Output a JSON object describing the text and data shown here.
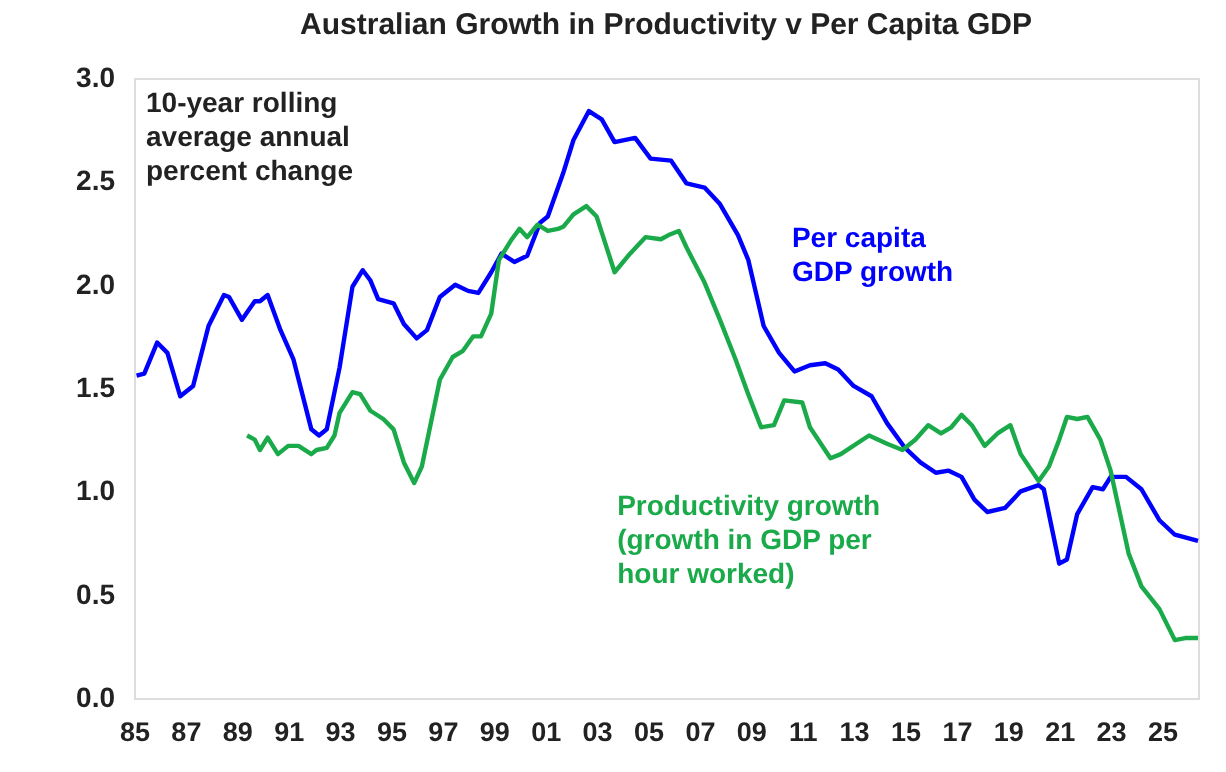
{
  "chart_data": {
    "type": "line",
    "title": "Australian Growth in Productivity v Per Capita GDP",
    "annotations": [
      "10-year rolling average annual percent change"
    ],
    "xlim": [
      1985,
      2026.4
    ],
    "xticks": [
      {
        "value": 1985,
        "label": "85"
      },
      {
        "value": 1987,
        "label": "87"
      },
      {
        "value": 1989,
        "label": "89"
      },
      {
        "value": 1991,
        "label": "91"
      },
      {
        "value": 1993,
        "label": "93"
      },
      {
        "value": 1995,
        "label": "95"
      },
      {
        "value": 1997,
        "label": "97"
      },
      {
        "value": 1999,
        "label": "99"
      },
      {
        "value": 2001,
        "label": "01"
      },
      {
        "value": 2003,
        "label": "03"
      },
      {
        "value": 2005,
        "label": "05"
      },
      {
        "value": 2007,
        "label": "07"
      },
      {
        "value": 2009,
        "label": "09"
      },
      {
        "value": 2011,
        "label": "11"
      },
      {
        "value": 2013,
        "label": "13"
      },
      {
        "value": 2015,
        "label": "15"
      },
      {
        "value": 2017,
        "label": "17"
      },
      {
        "value": 2019,
        "label": "19"
      },
      {
        "value": 2021,
        "label": "21"
      },
      {
        "value": 2023,
        "label": "23"
      },
      {
        "value": 2025,
        "label": "25"
      }
    ],
    "ylim": [
      0,
      3
    ],
    "yticks": [
      {
        "value": 0,
        "label": "0.0"
      },
      {
        "value": 0.5,
        "label": "0.5"
      },
      {
        "value": 1,
        "label": "1.0"
      },
      {
        "value": 1.5,
        "label": "1.5"
      },
      {
        "value": 2,
        "label": "2.0"
      },
      {
        "value": 2.5,
        "label": "2.5"
      },
      {
        "value": 3,
        "label": "3.0"
      }
    ],
    "grid": false,
    "legend": false,
    "marker": "none",
    "line_style": "solid",
    "series": [
      {
        "name": "Per capita GDP growth",
        "color": "#0000ff",
        "x": [
          1985.1,
          1985.4,
          1985.9,
          1986.3,
          1986.8,
          1987.3,
          1987.9,
          1988.5,
          1988.7,
          1989.2,
          1989.7,
          1989.9,
          1990.2,
          1990.7,
          1991.2,
          1991.9,
          1992.2,
          1992.5,
          1993.0,
          1993.5,
          1993.9,
          1994.2,
          1994.5,
          1995.1,
          1995.5,
          1996.0,
          1996.4,
          1996.9,
          1997.5,
          1998.0,
          1998.4,
          1998.9,
          1999.3,
          1999.8,
          2000.3,
          2000.8,
          2001.1,
          2001.7,
          2002.1,
          2002.7,
          2003.2,
          2003.7,
          2004.5,
          2005.1,
          2005.9,
          2006.5,
          2007.2,
          2007.8,
          2008.5,
          2008.9,
          2009.5,
          2010.1,
          2010.7,
          2011.3,
          2011.9,
          2012.4,
          2013.0,
          2013.7,
          2014.3,
          2015.0,
          2015.6,
          2016.2,
          2016.7,
          2017.2,
          2017.7,
          2018.2,
          2018.9,
          2019.5,
          2020.2,
          2020.4,
          2020.7,
          2021.0,
          2021.3,
          2021.7,
          2022.3,
          2022.7,
          2023.0,
          2023.6,
          2024.2,
          2024.9,
          2025.5,
          2026.4
        ],
        "values": [
          1.56,
          1.57,
          1.72,
          1.67,
          1.46,
          1.51,
          1.8,
          1.95,
          1.94,
          1.83,
          1.92,
          1.92,
          1.95,
          1.78,
          1.64,
          1.3,
          1.27,
          1.3,
          1.6,
          1.99,
          2.07,
          2.02,
          1.93,
          1.91,
          1.81,
          1.74,
          1.78,
          1.94,
          2.0,
          1.97,
          1.96,
          2.06,
          2.15,
          2.11,
          2.14,
          2.3,
          2.33,
          2.54,
          2.7,
          2.84,
          2.8,
          2.69,
          2.71,
          2.61,
          2.6,
          2.49,
          2.47,
          2.39,
          2.24,
          2.12,
          1.8,
          1.67,
          1.58,
          1.61,
          1.62,
          1.59,
          1.51,
          1.46,
          1.33,
          1.21,
          1.14,
          1.09,
          1.1,
          1.07,
          0.96,
          0.9,
          0.92,
          1.0,
          1.03,
          1.01,
          0.83,
          0.65,
          0.67,
          0.89,
          1.02,
          1.01,
          1.07,
          1.07,
          1.01,
          0.86,
          0.79,
          0.76
        ]
      },
      {
        "name": "Productivity growth (growth in GDP per hour worked)",
        "color": "#1aaa4a",
        "x": [
          1989.4,
          1989.7,
          1989.9,
          1990.2,
          1990.6,
          1991.0,
          1991.4,
          1991.9,
          1992.1,
          1992.5,
          1992.8,
          1993.0,
          1993.5,
          1993.8,
          1994.2,
          1994.7,
          1995.1,
          1995.5,
          1995.9,
          1996.2,
          1996.9,
          1997.4,
          1997.8,
          1998.2,
          1998.5,
          1998.9,
          1999.2,
          1999.7,
          2000.0,
          2000.3,
          2000.7,
          2001.1,
          2001.5,
          2001.7,
          2002.1,
          2002.6,
          2003.0,
          2003.7,
          2004.3,
          2004.9,
          2005.5,
          2005.8,
          2006.2,
          2006.5,
          2007.2,
          2007.8,
          2008.4,
          2008.9,
          2009.4,
          2009.9,
          2010.3,
          2011.0,
          2011.3,
          2012.1,
          2012.5,
          2013.6,
          2014.3,
          2014.9,
          2015.4,
          2015.9,
          2016.4,
          2016.8,
          2017.2,
          2017.6,
          2018.1,
          2018.6,
          2019.1,
          2019.5,
          2020.2,
          2020.6,
          2021.0,
          2021.3,
          2021.7,
          2022.1,
          2022.6,
          2023.0,
          2023.7,
          2024.2,
          2024.9,
          2025.5,
          2025.9,
          2026.4
        ],
        "values": [
          1.27,
          1.25,
          1.2,
          1.26,
          1.18,
          1.22,
          1.22,
          1.18,
          1.2,
          1.21,
          1.27,
          1.38,
          1.48,
          1.47,
          1.39,
          1.35,
          1.3,
          1.14,
          1.04,
          1.12,
          1.54,
          1.65,
          1.68,
          1.75,
          1.75,
          1.86,
          2.12,
          2.22,
          2.27,
          2.23,
          2.29,
          2.26,
          2.27,
          2.28,
          2.34,
          2.38,
          2.33,
          2.06,
          2.15,
          2.23,
          2.22,
          2.24,
          2.26,
          2.18,
          2.01,
          1.83,
          1.64,
          1.47,
          1.31,
          1.32,
          1.44,
          1.43,
          1.31,
          1.16,
          1.18,
          1.27,
          1.23,
          1.2,
          1.25,
          1.32,
          1.28,
          1.31,
          1.37,
          1.32,
          1.22,
          1.28,
          1.32,
          1.18,
          1.05,
          1.12,
          1.25,
          1.36,
          1.35,
          1.36,
          1.25,
          1.1,
          0.7,
          0.54,
          0.43,
          0.28,
          0.29,
          0.29
        ]
      }
    ]
  }
}
